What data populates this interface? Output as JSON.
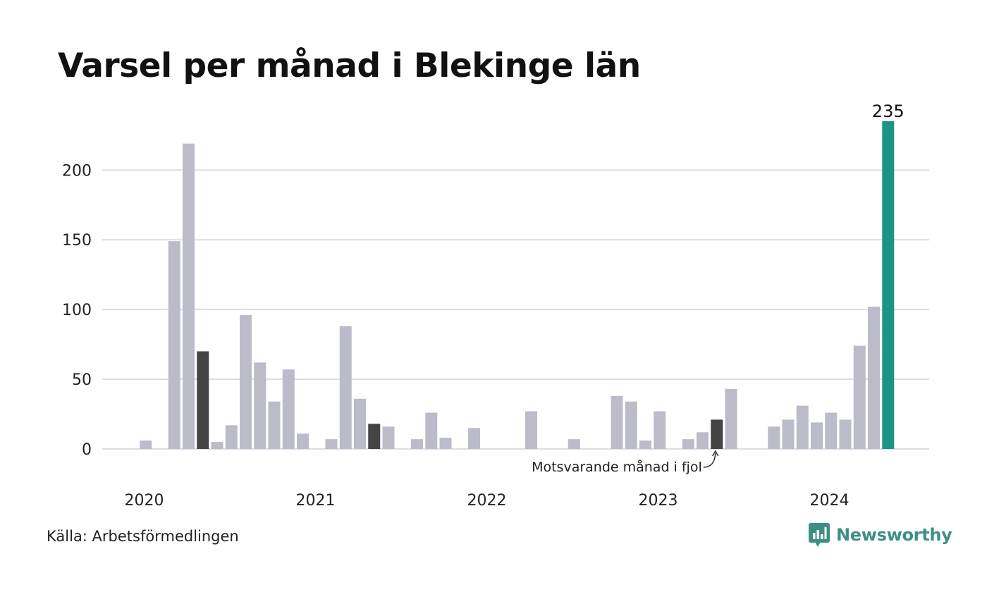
{
  "chart_data": {
    "type": "bar",
    "title": "Varsel per månad i Blekinge län",
    "xlabel": "",
    "ylabel": "",
    "ylim": [
      0,
      235
    ],
    "yticks": [
      0,
      50,
      100,
      150,
      200
    ],
    "x_labels": [
      "2020",
      "2021",
      "2022",
      "2023",
      "2024"
    ],
    "grid": true,
    "start": "2020-01",
    "values": [
      0,
      6,
      0,
      149,
      219,
      70,
      5,
      17,
      96,
      62,
      34,
      57,
      11,
      0,
      7,
      88,
      36,
      18,
      16,
      0,
      7,
      26,
      8,
      0,
      15,
      0,
      0,
      0,
      27,
      0,
      0,
      7,
      0,
      0,
      38,
      34,
      6,
      27,
      0,
      7,
      12,
      21,
      43,
      0,
      0,
      16,
      21,
      31,
      19,
      26,
      21,
      74,
      102,
      235
    ],
    "highlight_current_index": 53,
    "highlight_previous_year_indices": [
      5,
      17,
      41
    ],
    "current_value_label": "235",
    "annotation": "Motsvarande månad i fjol",
    "colors": {
      "bar": "#bcbbc9",
      "previous_year": "#444444",
      "current": "#1b9484",
      "grid": "#dcdce3"
    }
  },
  "footer": {
    "source": "Källa: Arbetsförmedlingen",
    "brand": "Newsworthy",
    "brand_color": "#3d8f86"
  }
}
